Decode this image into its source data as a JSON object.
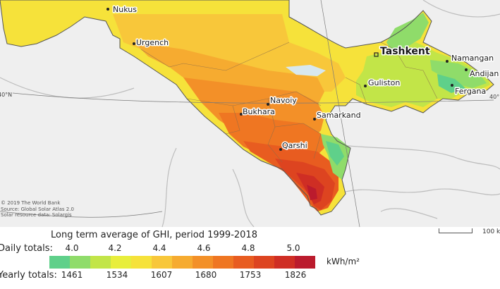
{
  "map": {
    "cities": [
      {
        "name": "Nukus",
        "big": false
      },
      {
        "name": "Urgench",
        "big": false
      },
      {
        "name": "Tashkent",
        "big": true
      },
      {
        "name": "Namangan",
        "big": false
      },
      {
        "name": "Andijan",
        "big": false
      },
      {
        "name": "Fergana",
        "big": false
      },
      {
        "name": "Guliston",
        "big": false
      },
      {
        "name": "Navoiy",
        "big": false
      },
      {
        "name": "Bukhara",
        "big": false
      },
      {
        "name": "Samarkand",
        "big": false
      },
      {
        "name": "Qarshi",
        "big": false
      }
    ],
    "lat_labels": [
      "40°N",
      "40°"
    ]
  },
  "credits": [
    "© 2019 The World Bank",
    "Source: Global Solar Atlas 2.0",
    "Solar resource data: Solargis"
  ],
  "scale": {
    "label": "100 k"
  },
  "legend": {
    "title": "Long term average of GHI, period 1999-2018",
    "daily_label": "Daily totals:",
    "yearly_label": "Yearly totals:",
    "daily_values": [
      "4.0",
      "4.2",
      "4.4",
      "4.6",
      "4.8",
      "5.0"
    ],
    "yearly_values": [
      "1461",
      "1534",
      "1607",
      "1680",
      "1753",
      "1826"
    ],
    "unit": "kWh/m²",
    "colors": [
      "#5fd08a",
      "#8fdc6a",
      "#c2e548",
      "#e8ee3c",
      "#f6e23a",
      "#f8c73a",
      "#f6ab30",
      "#f39028",
      "#ef7622",
      "#e85c20",
      "#dd4420",
      "#cf2e24",
      "#bb1b2d"
    ]
  }
}
